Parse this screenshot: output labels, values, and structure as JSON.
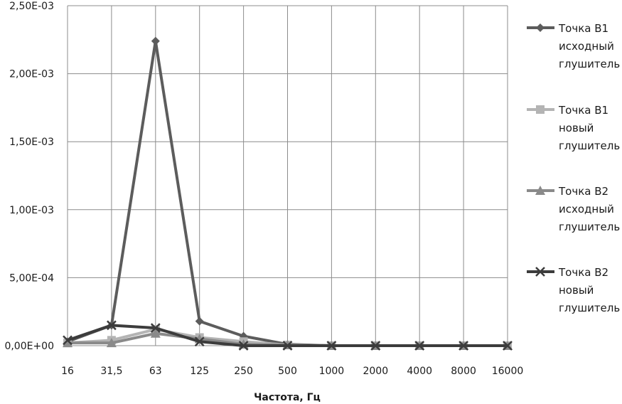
{
  "chart_data": {
    "type": "line",
    "title": "",
    "xlabel": "Частота, Гц",
    "ylabel": "",
    "categories": [
      "16",
      "31,5",
      "63",
      "125",
      "250",
      "500",
      "1000",
      "2000",
      "4000",
      "8000",
      "16000"
    ],
    "y_ticks": [
      "0,00E+00",
      "5,00E-04",
      "1,00E-03",
      "1,50E-03",
      "2,00E-03",
      "2,50E-03"
    ],
    "ylim": [
      0,
      0.0025
    ],
    "grid": true,
    "legend_position": "right",
    "series": [
      {
        "name": "Точка В1 исходный глушитель",
        "legend_lines": [
          "Точка В1",
          "исходный",
          "глушитель"
        ],
        "marker": "diamond",
        "color": "#5c5c5c",
        "values": [
          3e-05,
          0.00015,
          0.00224,
          0.00018,
          7e-05,
          1e-05,
          0.0,
          0.0,
          0.0,
          0.0,
          0.0
        ]
      },
      {
        "name": "Точка В1 новый глушитель",
        "legend_lines": [
          "Точка В1",
          "новый",
          "глушитель"
        ],
        "marker": "square",
        "color": "#b4b4b4",
        "values": [
          2e-05,
          4e-05,
          0.00012,
          6e-05,
          3e-05,
          5e-06,
          0.0,
          0.0,
          0.0,
          0.0,
          0.0
        ]
      },
      {
        "name": "Точка В2 исходный глушитель",
        "legend_lines": [
          "Точка В2",
          "исходный",
          "глушитель"
        ],
        "marker": "triangle",
        "color": "#8a8a8a",
        "values": [
          2e-05,
          2e-05,
          9e-05,
          5e-05,
          1e-05,
          5e-06,
          0.0,
          0.0,
          0.0,
          0.0,
          0.0
        ]
      },
      {
        "name": "Точка В2 новый глушитель",
        "legend_lines": [
          "Точка В2",
          "новый",
          "глушитель"
        ],
        "marker": "x",
        "color": "#3c3c3c",
        "values": [
          4e-05,
          0.00015,
          0.00013,
          3e-05,
          0.0,
          0.0,
          0.0,
          0.0,
          0.0,
          0.0,
          0.0
        ]
      }
    ]
  }
}
